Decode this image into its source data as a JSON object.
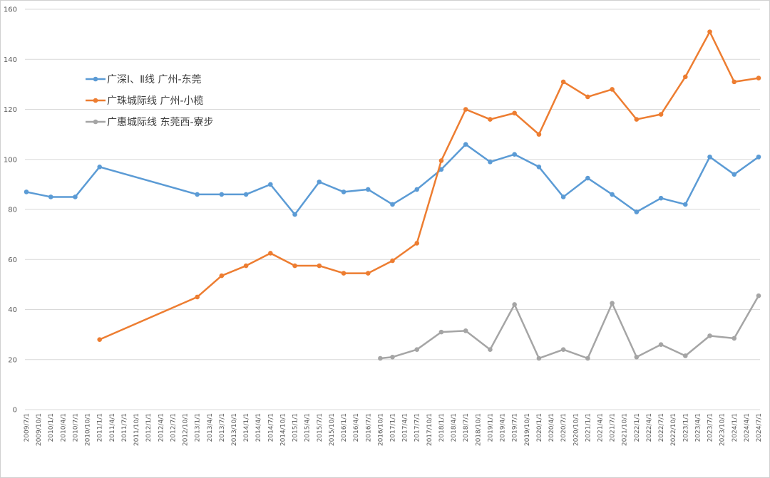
{
  "chart_data": {
    "type": "line",
    "title": "",
    "xlabel": "",
    "ylabel": "",
    "ylim": [
      0,
      160
    ],
    "yticks": [
      0,
      20,
      40,
      60,
      80,
      100,
      120,
      140,
      160
    ],
    "grid": true,
    "legend_position": "top-left",
    "categories": [
      "2009/7/1",
      "2009/10/1",
      "2010/1/1",
      "2010/4/1",
      "2010/7/1",
      "2010/10/1",
      "2011/1/1",
      "2011/4/1",
      "2011/7/1",
      "2011/10/1",
      "2012/1/1",
      "2012/4/1",
      "2012/7/1",
      "2012/10/1",
      "2013/1/1",
      "2013/4/1",
      "2013/7/1",
      "2013/10/1",
      "2014/1/1",
      "2014/4/1",
      "2014/7/1",
      "2014/10/1",
      "2015/1/1",
      "2015/4/1",
      "2015/7/1",
      "2015/10/1",
      "2016/1/1",
      "2016/4/1",
      "2016/7/1",
      "2016/10/1",
      "2017/1/1",
      "2017/4/1",
      "2017/7/1",
      "2017/10/1",
      "2018/1/1",
      "2018/4/1",
      "2018/7/1",
      "2018/10/1",
      "2019/1/1",
      "2019/4/1",
      "2019/7/1",
      "2019/10/1",
      "2020/1/1",
      "2020/4/1",
      "2020/7/1",
      "2020/10/1",
      "2021/1/1",
      "2021/4/1",
      "2021/7/1",
      "2021/10/1",
      "2022/1/1",
      "2022/4/1",
      "2022/7/1",
      "2022/10/1",
      "2023/1/1",
      "2023/4/1",
      "2023/7/1",
      "2023/10/1",
      "2024/1/1",
      "2024/4/1",
      "2024/7/1"
    ],
    "series": [
      {
        "name": "广深Ⅰ、Ⅱ线 广州-东莞",
        "color": "#5b9bd5",
        "points": [
          [
            "2009/7/1",
            87
          ],
          [
            "2010/1/1",
            85
          ],
          [
            "2010/7/1",
            85
          ],
          [
            "2011/1/1",
            97
          ],
          [
            "2013/1/1",
            86
          ],
          [
            "2013/7/1",
            86
          ],
          [
            "2014/1/1",
            86
          ],
          [
            "2014/7/1",
            90
          ],
          [
            "2015/1/1",
            78
          ],
          [
            "2015/7/1",
            91
          ],
          [
            "2016/1/1",
            87
          ],
          [
            "2016/7/1",
            88
          ],
          [
            "2017/1/1",
            82
          ],
          [
            "2017/7/1",
            88
          ],
          [
            "2018/1/1",
            96
          ],
          [
            "2018/7/1",
            106
          ],
          [
            "2019/1/1",
            99
          ],
          [
            "2019/7/1",
            102
          ],
          [
            "2020/1/1",
            97
          ],
          [
            "2020/7/1",
            85
          ],
          [
            "2021/1/1",
            92.5
          ],
          [
            "2021/7/1",
            86
          ],
          [
            "2022/1/1",
            79
          ],
          [
            "2022/7/1",
            84.5
          ],
          [
            "2023/1/1",
            82
          ],
          [
            "2023/7/1",
            101
          ],
          [
            "2024/1/1",
            94
          ],
          [
            "2024/7/1",
            101
          ]
        ]
      },
      {
        "name": "广珠城际线 广州-小榄",
        "color": "#ed7d31",
        "points": [
          [
            "2011/1/1",
            28
          ],
          [
            "2013/1/1",
            45
          ],
          [
            "2013/7/1",
            53.5
          ],
          [
            "2014/1/1",
            57.5
          ],
          [
            "2014/7/1",
            62.5
          ],
          [
            "2015/1/1",
            57.5
          ],
          [
            "2015/7/1",
            57.5
          ],
          [
            "2016/1/1",
            54.5
          ],
          [
            "2016/7/1",
            54.5
          ],
          [
            "2017/1/1",
            59.5
          ],
          [
            "2017/7/1",
            66.5
          ],
          [
            "2018/1/1",
            99.5
          ],
          [
            "2018/7/1",
            120
          ],
          [
            "2019/1/1",
            116
          ],
          [
            "2019/7/1",
            118.5
          ],
          [
            "2020/1/1",
            110
          ],
          [
            "2020/7/1",
            131
          ],
          [
            "2021/1/1",
            125
          ],
          [
            "2021/7/1",
            128
          ],
          [
            "2022/1/1",
            116
          ],
          [
            "2022/7/1",
            118
          ],
          [
            "2023/1/1",
            133
          ],
          [
            "2023/7/1",
            151
          ],
          [
            "2024/1/1",
            131
          ],
          [
            "2024/7/1",
            132.5
          ]
        ]
      },
      {
        "name": "广惠城际线 东莞西-寮步",
        "color": "#a5a5a5",
        "points": [
          [
            "2016/10/1",
            20.5
          ],
          [
            "2017/1/1",
            21
          ],
          [
            "2017/7/1",
            24
          ],
          [
            "2018/1/1",
            31
          ],
          [
            "2018/7/1",
            31.5
          ],
          [
            "2019/1/1",
            24
          ],
          [
            "2019/7/1",
            42
          ],
          [
            "2020/1/1",
            20.5
          ],
          [
            "2020/7/1",
            24
          ],
          [
            "2021/1/1",
            20.5
          ],
          [
            "2021/7/1",
            42.5
          ],
          [
            "2022/1/1",
            21
          ],
          [
            "2022/7/1",
            26
          ],
          [
            "2023/1/1",
            21.5
          ],
          [
            "2023/7/1",
            29.5
          ],
          [
            "2024/1/1",
            28.5
          ],
          [
            "2024/7/1",
            45.5
          ]
        ]
      }
    ]
  }
}
